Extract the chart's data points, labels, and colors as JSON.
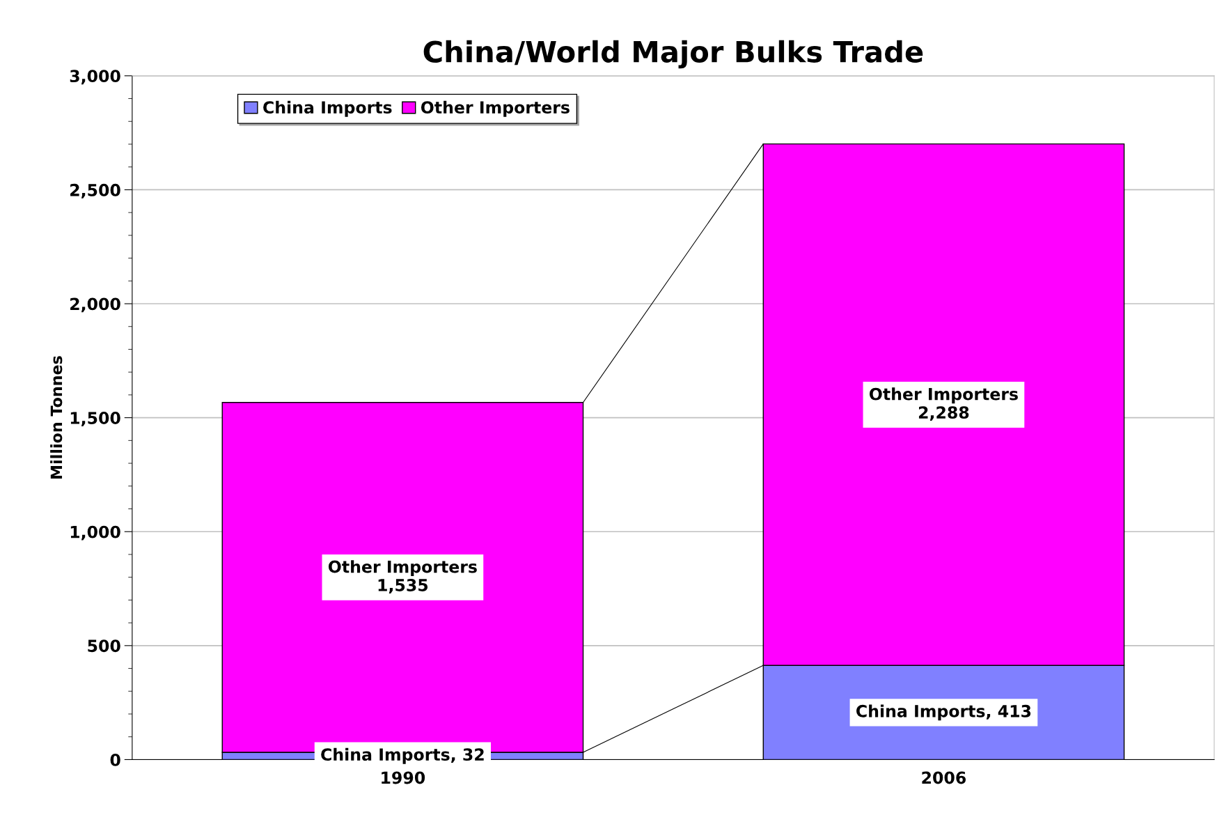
{
  "chart_data": {
    "type": "bar",
    "title": "China/World Major Bulks Trade",
    "ylabel": "Million Tonnes",
    "categories": [
      "1990",
      "2006"
    ],
    "stacked": true,
    "series": [
      {
        "name": "China Imports",
        "color": "#8080ff",
        "values": [
          32,
          413
        ],
        "value_labels": [
          "China Imports, 32",
          "China Imports, 413"
        ]
      },
      {
        "name": "Other Importers",
        "color": "#ff00ff",
        "values": [
          1535,
          2288
        ],
        "value_labels": [
          "Other Importers\n1,535",
          "Other Importers\n2,288"
        ]
      }
    ],
    "ylim": [
      0,
      3000
    ],
    "yticks": [
      0,
      {
        "value": 100,
        "label": null
      },
      {
        "value": 200,
        "label": null
      },
      {
        "value": 300,
        "label": null
      },
      {
        "value": 400,
        "label": null
      },
      500,
      {
        "value": 600,
        "label": null
      },
      {
        "value": 700,
        "label": null
      },
      {
        "value": 800,
        "label": null
      },
      {
        "value": 900,
        "label": null
      },
      {
        "value": 1000,
        "label": "1,000"
      },
      {
        "value": 1100,
        "label": null
      },
      {
        "value": 1200,
        "label": null
      },
      {
        "value": 1300,
        "label": null
      },
      {
        "value": 1400,
        "label": null
      },
      {
        "value": 1500,
        "label": "1,500"
      },
      {
        "value": 1600,
        "label": null
      },
      {
        "value": 1700,
        "label": null
      },
      {
        "value": 1800,
        "label": null
      },
      {
        "value": 1900,
        "label": null
      },
      {
        "value": 2000,
        "label": "2,000"
      },
      {
        "value": 2100,
        "label": null
      },
      {
        "value": 2200,
        "label": null
      },
      {
        "value": 2300,
        "label": null
      },
      {
        "value": 2400,
        "label": null
      },
      {
        "value": 2500,
        "label": "2,500"
      },
      {
        "value": 2600,
        "label": null
      },
      {
        "value": 2700,
        "label": null
      },
      {
        "value": 2800,
        "label": null
      },
      {
        "value": 2900,
        "label": null
      },
      {
        "value": 3000,
        "label": "3,000"
      }
    ],
    "grid": "y",
    "legend": "top left"
  }
}
